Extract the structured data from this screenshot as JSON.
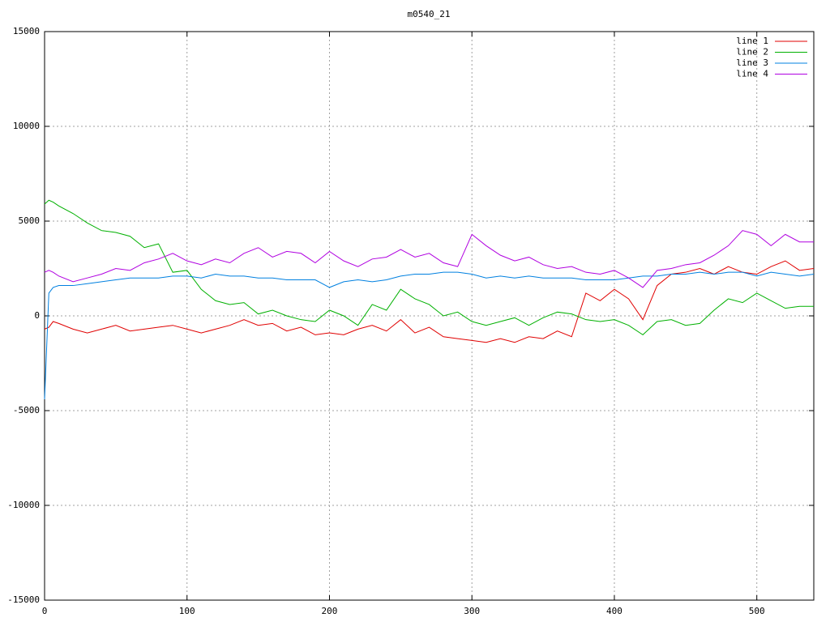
{
  "chart_data": {
    "type": "line",
    "title": "m0540_21",
    "x": [
      0,
      3,
      6,
      10,
      20,
      30,
      40,
      50,
      60,
      70,
      80,
      90,
      100,
      110,
      120,
      130,
      140,
      150,
      160,
      170,
      180,
      190,
      200,
      210,
      220,
      230,
      240,
      250,
      260,
      270,
      280,
      290,
      300,
      310,
      320,
      330,
      340,
      350,
      360,
      370,
      380,
      390,
      400,
      410,
      420,
      430,
      440,
      450,
      460,
      470,
      480,
      490,
      500,
      510,
      520,
      530,
      540
    ],
    "series": [
      {
        "name": "line 1",
        "color": "#e00000",
        "values": [
          -700,
          -600,
          -300,
          -400,
          -700,
          -900,
          -700,
          -500,
          -800,
          -700,
          -600,
          -500,
          -700,
          -900,
          -700,
          -500,
          -200,
          -500,
          -400,
          -800,
          -600,
          -1000,
          -900,
          -1000,
          -700,
          -500,
          -800,
          -200,
          -900,
          -600,
          -1100,
          -1200,
          -1300,
          -1400,
          -1200,
          -1400,
          -1100,
          -1200,
          -800,
          -1100,
          1200,
          800,
          1400,
          900,
          -200,
          1600,
          2200,
          2300,
          2500,
          2200,
          2600,
          2300,
          2200,
          2600,
          2900,
          2400,
          2500
        ]
      },
      {
        "name": "line 2",
        "color": "#00b000",
        "values": [
          5900,
          6100,
          6000,
          5800,
          5400,
          4900,
          4500,
          4400,
          4200,
          3600,
          3800,
          2300,
          2400,
          1400,
          800,
          600,
          700,
          100,
          300,
          0,
          -200,
          -300,
          300,
          0,
          -500,
          600,
          300,
          1400,
          900,
          600,
          0,
          200,
          -300,
          -500,
          -300,
          -100,
          -500,
          -100,
          200,
          100,
          -200,
          -300,
          -200,
          -500,
          -1000,
          -300,
          -200,
          -500,
          -400,
          300,
          900,
          700,
          1200,
          800,
          400,
          500,
          500
        ]
      },
      {
        "name": "line 3",
        "color": "#0080e0",
        "values": [
          -4400,
          1200,
          1500,
          1600,
          1600,
          1700,
          1800,
          1900,
          2000,
          2000,
          2000,
          2100,
          2100,
          2000,
          2200,
          2100,
          2100,
          2000,
          2000,
          1900,
          1900,
          1900,
          1500,
          1800,
          1900,
          1800,
          1900,
          2100,
          2200,
          2200,
          2300,
          2300,
          2200,
          2000,
          2100,
          2000,
          2100,
          2000,
          2000,
          2000,
          1900,
          1900,
          1900,
          2000,
          2100,
          2100,
          2200,
          2200,
          2300,
          2200,
          2300,
          2300,
          2100,
          2300,
          2200,
          2100,
          2200
        ]
      },
      {
        "name": "line 4",
        "color": "#b000e0",
        "values": [
          2300,
          2400,
          2300,
          2100,
          1800,
          2000,
          2200,
          2500,
          2400,
          2800,
          3000,
          3300,
          2900,
          2700,
          3000,
          2800,
          3300,
          3600,
          3100,
          3400,
          3300,
          2800,
          3400,
          2900,
          2600,
          3000,
          3100,
          3500,
          3100,
          3300,
          2800,
          2600,
          4300,
          3700,
          3200,
          2900,
          3100,
          2700,
          2500,
          2600,
          2300,
          2200,
          2400,
          2000,
          1500,
          2400,
          2500,
          2700,
          2800,
          3200,
          3700,
          4500,
          4300,
          3700,
          4300,
          3900,
          3900
        ]
      }
    ],
    "xlim": [
      0,
      540
    ],
    "xticks": [
      0,
      100,
      200,
      300,
      400,
      500
    ],
    "ylim": [
      -15000,
      15000
    ],
    "yticks": [
      -15000,
      -10000,
      -5000,
      0,
      5000,
      10000,
      15000
    ],
    "grid": true,
    "legend": "top-right"
  }
}
